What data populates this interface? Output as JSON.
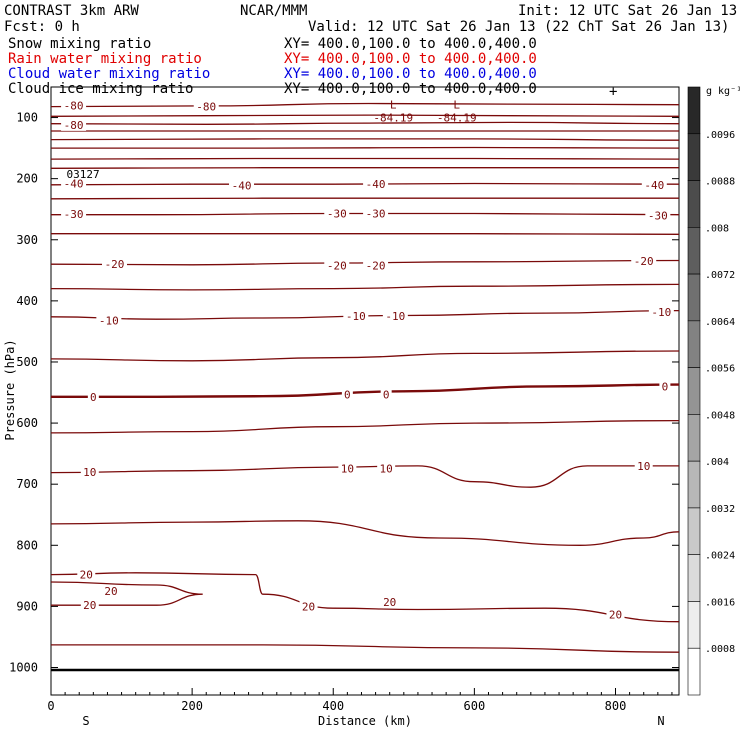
{
  "header": {
    "left_line1": "CONTRAST  3km ARW",
    "left_line2": "Fcst:    0 h",
    "center_line1": "NCAR/MMM",
    "right_line1": "Init: 12 UTC Sat 26 Jan 13",
    "right_line2": "Valid: 12 UTC Sat 26 Jan 13 (22 ChT Sat 26 Jan 13)"
  },
  "fields": [
    {
      "label": "Snow mixing ratio",
      "xy": "XY= 400.0,100.0 to 400.0,400.0",
      "color": "#000000"
    },
    {
      "label": "Rain water mixing ratio",
      "xy": "XY= 400.0,100.0 to 400.0,400.0",
      "color": "#e00000"
    },
    {
      "label": "Cloud water mixing ratio",
      "xy": "XY= 400.0,100.0 to 400.0,400.0",
      "color": "#0000e0"
    },
    {
      "label": "Cloud ice mixing ratio",
      "xy": "XY= 400.0,100.0 to 400.0,400.0",
      "color": "#000000"
    }
  ],
  "chart_data": {
    "type": "line",
    "xlabel": "Distance (km)",
    "ylabel": "Pressure (hPa)",
    "xlim": [
      0,
      890
    ],
    "ylim": [
      50,
      1045
    ],
    "x_ticks": [
      0,
      200,
      400,
      600,
      800
    ],
    "x_tick_labels": [
      "0",
      "200",
      "400",
      "600",
      "800"
    ],
    "y_ticks": [
      100,
      200,
      300,
      400,
      500,
      600,
      700,
      800,
      900,
      1000
    ],
    "y_tick_labels": [
      "100",
      "200",
      "300",
      "400",
      "500",
      "600",
      "700",
      "800",
      "900",
      "1000"
    ],
    "end_labels": {
      "left": "S",
      "right": "N"
    },
    "colorbar": {
      "unit": "g kg⁻¹",
      "tick_labels": [
        ".0096",
        ".0088",
        ".008",
        ".0072",
        ".0064",
        ".0056",
        ".0048",
        ".004",
        ".0032",
        ".0024",
        ".0016",
        ".0008"
      ]
    },
    "low_markers": [
      {
        "symbol": "L",
        "value": "-84.19",
        "x": 485,
        "p": 92
      },
      {
        "symbol": "L",
        "value": "-84.19",
        "x": 575,
        "p": 92
      }
    ],
    "contours": [
      {
        "level": -80,
        "points": [
          [
            0,
            82
          ],
          [
            220,
            81
          ],
          [
            450,
            77
          ],
          [
            650,
            78
          ],
          [
            890,
            79
          ]
        ]
      },
      {
        "level": -80,
        "points": [
          [
            0,
            98
          ],
          [
            220,
            97
          ],
          [
            450,
            96
          ],
          [
            650,
            97
          ],
          [
            890,
            98
          ]
        ]
      },
      {
        "level": -80,
        "points": [
          [
            0,
            110
          ],
          [
            220,
            111
          ],
          [
            450,
            109
          ],
          [
            650,
            108
          ],
          [
            890,
            110
          ]
        ]
      },
      {
        "level": -70,
        "points": [
          [
            0,
            122
          ],
          [
            300,
            122
          ],
          [
            600,
            122
          ],
          [
            890,
            122
          ]
        ]
      },
      {
        "level": -60,
        "points": [
          [
            0,
            136
          ],
          [
            300,
            135
          ],
          [
            600,
            135
          ],
          [
            890,
            137
          ]
        ]
      },
      {
        "level": -55,
        "points": [
          [
            0,
            150
          ],
          [
            300,
            150
          ],
          [
            600,
            149
          ],
          [
            890,
            150
          ]
        ]
      },
      {
        "level": -50,
        "points": [
          [
            0,
            168
          ],
          [
            300,
            167
          ],
          [
            600,
            167
          ],
          [
            890,
            168
          ]
        ]
      },
      {
        "level": -45,
        "points": [
          [
            0,
            183
          ],
          [
            300,
            182
          ],
          [
            600,
            182
          ],
          [
            890,
            182
          ]
        ]
      },
      {
        "level": -40,
        "points": [
          [
            0,
            210
          ],
          [
            200,
            209
          ],
          [
            400,
            209
          ],
          [
            600,
            208
          ],
          [
            890,
            209
          ]
        ]
      },
      {
        "level": -35,
        "points": [
          [
            0,
            233
          ],
          [
            300,
            232
          ],
          [
            600,
            232
          ],
          [
            890,
            232
          ]
        ]
      },
      {
        "level": -30,
        "points": [
          [
            0,
            259
          ],
          [
            150,
            259
          ],
          [
            400,
            257
          ],
          [
            600,
            257
          ],
          [
            890,
            259
          ]
        ]
      },
      {
        "level": -25,
        "points": [
          [
            0,
            290
          ],
          [
            300,
            290
          ],
          [
            600,
            290
          ],
          [
            890,
            291
          ]
        ]
      },
      {
        "level": -20,
        "points": [
          [
            0,
            340
          ],
          [
            200,
            341
          ],
          [
            400,
            338
          ],
          [
            600,
            336
          ],
          [
            890,
            334
          ]
        ]
      },
      {
        "level": -15,
        "points": [
          [
            0,
            380
          ],
          [
            200,
            382
          ],
          [
            400,
            380
          ],
          [
            600,
            376
          ],
          [
            890,
            373
          ]
        ]
      },
      {
        "level": -10,
        "points": [
          [
            0,
            426
          ],
          [
            150,
            430
          ],
          [
            300,
            428
          ],
          [
            500,
            424
          ],
          [
            700,
            420
          ],
          [
            890,
            416
          ]
        ]
      },
      {
        "level": -5,
        "points": [
          [
            0,
            495
          ],
          [
            200,
            498
          ],
          [
            400,
            493
          ],
          [
            600,
            486
          ],
          [
            890,
            482
          ]
        ]
      },
      {
        "level": 0,
        "bold": true,
        "points": [
          [
            0,
            557
          ],
          [
            150,
            557
          ],
          [
            300,
            556
          ],
          [
            500,
            548
          ],
          [
            700,
            540
          ],
          [
            890,
            537
          ]
        ]
      },
      {
        "level": 5,
        "points": [
          [
            0,
            616
          ],
          [
            200,
            614
          ],
          [
            400,
            606
          ],
          [
            600,
            600
          ],
          [
            890,
            596
          ]
        ]
      },
      {
        "level": 10,
        "points": [
          [
            0,
            681
          ],
          [
            200,
            678
          ],
          [
            400,
            672
          ],
          [
            520,
            670
          ],
          [
            600,
            696
          ],
          [
            680,
            705
          ],
          [
            760,
            670
          ],
          [
            890,
            670
          ]
        ]
      },
      {
        "level": 15,
        "points": [
          [
            0,
            765
          ],
          [
            200,
            762
          ],
          [
            350,
            760
          ],
          [
            550,
            788
          ],
          [
            750,
            800
          ],
          [
            840,
            788
          ],
          [
            890,
            778
          ]
        ]
      },
      {
        "level": 20,
        "points": [
          [
            0,
            848
          ],
          [
            120,
            845
          ],
          [
            290,
            848
          ],
          [
            300,
            880
          ],
          [
            400,
            903
          ],
          [
            520,
            905
          ],
          [
            700,
            903
          ],
          [
            890,
            925
          ]
        ]
      },
      {
        "level": 20,
        "points": [
          [
            0,
            860
          ],
          [
            150,
            865
          ],
          [
            215,
            880
          ],
          [
            150,
            898
          ],
          [
            0,
            898
          ]
        ]
      },
      {
        "level": 25,
        "points": [
          [
            0,
            963
          ],
          [
            300,
            963
          ],
          [
            600,
            968
          ],
          [
            890,
            975
          ]
        ]
      }
    ],
    "contour_labels": [
      {
        "text": "-80",
        "x": 32,
        "p": 80
      },
      {
        "text": "-80",
        "x": 220,
        "p": 82
      },
      {
        "text": "-80",
        "x": 32,
        "p": 112
      },
      {
        "text": "-40",
        "x": 32,
        "p": 208
      },
      {
        "text": "-40",
        "x": 270,
        "p": 211
      },
      {
        "text": "-40",
        "x": 460,
        "p": 209
      },
      {
        "text": "-40",
        "x": 855,
        "p": 210
      },
      {
        "text": "-30",
        "x": 32,
        "p": 258
      },
      {
        "text": "-30",
        "x": 405,
        "p": 257
      },
      {
        "text": "-30",
        "x": 460,
        "p": 257
      },
      {
        "text": "-30",
        "x": 860,
        "p": 260
      },
      {
        "text": "-20",
        "x": 90,
        "p": 340
      },
      {
        "text": "-20",
        "x": 405,
        "p": 342
      },
      {
        "text": "-20",
        "x": 460,
        "p": 342
      },
      {
        "text": "-20",
        "x": 840,
        "p": 335
      },
      {
        "text": "-10",
        "x": 82,
        "p": 432
      },
      {
        "text": "-10",
        "x": 432,
        "p": 425
      },
      {
        "text": "-10",
        "x": 488,
        "p": 425
      },
      {
        "text": "-10",
        "x": 865,
        "p": 418
      },
      {
        "text": "0",
        "x": 60,
        "p": 557
      },
      {
        "text": "0",
        "x": 420,
        "p": 553
      },
      {
        "text": "0",
        "x": 475,
        "p": 553
      },
      {
        "text": "0",
        "x": 870,
        "p": 540
      },
      {
        "text": "10",
        "x": 55,
        "p": 680
      },
      {
        "text": "10",
        "x": 420,
        "p": 674
      },
      {
        "text": "10",
        "x": 475,
        "p": 674
      },
      {
        "text": "10",
        "x": 840,
        "p": 670
      },
      {
        "text": "20",
        "x": 50,
        "p": 848
      },
      {
        "text": "20",
        "x": 85,
        "p": 875
      },
      {
        "text": "20",
        "x": 55,
        "p": 898
      },
      {
        "text": "20",
        "x": 365,
        "p": 900
      },
      {
        "text": "20",
        "x": 480,
        "p": 893
      },
      {
        "text": "20",
        "x": 800,
        "p": 913
      }
    ],
    "partial_label": {
      "text": "03127",
      "x": 22,
      "p": 192
    }
  }
}
